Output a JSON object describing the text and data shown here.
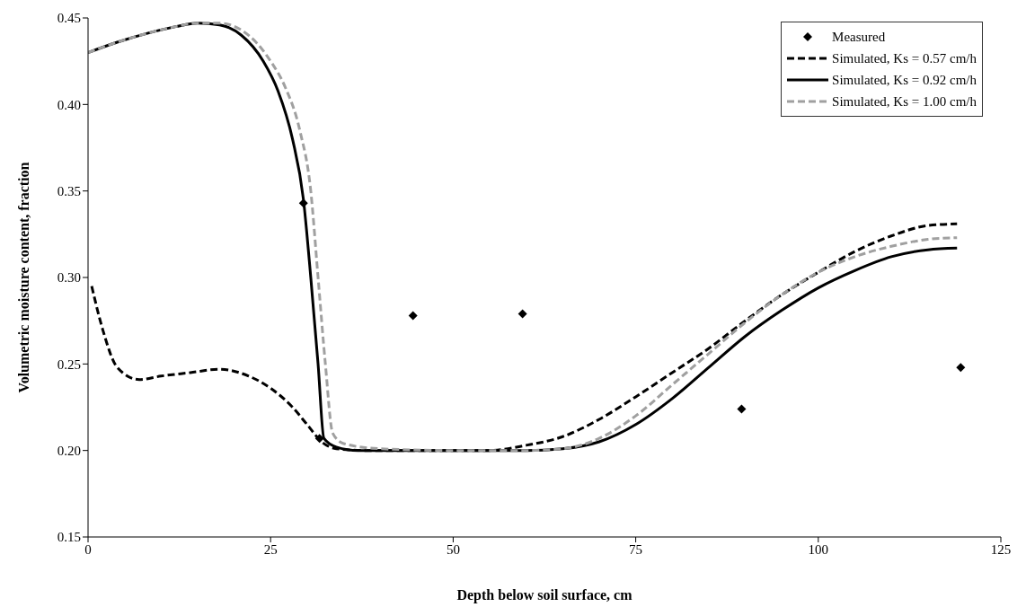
{
  "chart_data": {
    "type": "line",
    "xlabel": "Depth below soil surface, cm",
    "ylabel": "Volumetric moisture content, fraction",
    "xlim": [
      0,
      125
    ],
    "xticks": [
      0,
      25,
      50,
      75,
      100,
      125
    ],
    "ylim": [
      0.15,
      0.45
    ],
    "yticks": [
      {
        "value": 0.15,
        "label": "0.15"
      },
      {
        "value": 0.2,
        "label": "0.20"
      },
      {
        "value": 0.25,
        "label": "0.25"
      },
      {
        "value": 0.3,
        "label": "0.30"
      },
      {
        "value": 0.35,
        "label": "0.35"
      },
      {
        "value": 0.4,
        "label": "0.40"
      },
      {
        "value": 0.45,
        "label": "0.45"
      }
    ],
    "grid": false,
    "legend": "top right",
    "series": [
      {
        "name": "Measured",
        "type": "scatter",
        "marker": "diamond",
        "color": "#000000",
        "x": [
          29.5,
          31.7,
          44.5,
          59.5,
          89.5,
          119.5
        ],
        "values": [
          0.343,
          0.207,
          0.278,
          0.279,
          0.224,
          0.248
        ]
      },
      {
        "name": "Simulated, Ks = 0.57 cm/h",
        "line_style": "dashed",
        "color": "#000000",
        "x": [
          0.5,
          2,
          4,
          7,
          10,
          14,
          18,
          22,
          25,
          28,
          30,
          32,
          34,
          38,
          45,
          50,
          55,
          60,
          65,
          70,
          75,
          80,
          85,
          90,
          95,
          100,
          105,
          110,
          115,
          119
        ],
        "values": [
          0.295,
          0.27,
          0.248,
          0.241,
          0.243,
          0.245,
          0.247,
          0.243,
          0.236,
          0.225,
          0.215,
          0.205,
          0.201,
          0.2,
          0.2,
          0.2,
          0.2,
          0.203,
          0.208,
          0.218,
          0.231,
          0.245,
          0.259,
          0.275,
          0.29,
          0.303,
          0.315,
          0.324,
          0.33,
          0.331
        ]
      },
      {
        "name": "Simulated, Ks = 0.92 cm/h",
        "line_style": "solid",
        "color": "#000000",
        "x": [
          0,
          4,
          8,
          12,
          15,
          18,
          21,
          24,
          26,
          28,
          29.5,
          30.5,
          31.5,
          32.3,
          34,
          37,
          42,
          50,
          60,
          65,
          70,
          75,
          80,
          85,
          90,
          95,
          100,
          105,
          110,
          115,
          119
        ],
        "values": [
          0.43,
          0.436,
          0.441,
          0.445,
          0.447,
          0.446,
          0.44,
          0.425,
          0.408,
          0.38,
          0.345,
          0.3,
          0.25,
          0.207,
          0.202,
          0.2,
          0.2,
          0.2,
          0.2,
          0.201,
          0.205,
          0.215,
          0.23,
          0.248,
          0.266,
          0.281,
          0.294,
          0.304,
          0.312,
          0.316,
          0.317
        ]
      },
      {
        "name": "Simulated, Ks = 1.00 cm/h",
        "line_style": "dashed",
        "color": "#a0a0a0",
        "x": [
          0,
          4,
          8,
          12,
          15,
          18,
          21,
          23,
          25,
          27,
          29,
          30.5,
          31.5,
          32.5,
          33.5,
          35,
          40,
          50,
          60,
          65,
          70,
          75,
          80,
          85,
          90,
          95,
          100,
          105,
          110,
          115,
          119
        ],
        "values": [
          0.43,
          0.436,
          0.441,
          0.445,
          0.447,
          0.447,
          0.443,
          0.436,
          0.425,
          0.41,
          0.385,
          0.35,
          0.3,
          0.25,
          0.21,
          0.204,
          0.201,
          0.2,
          0.2,
          0.201,
          0.207,
          0.22,
          0.238,
          0.256,
          0.274,
          0.29,
          0.303,
          0.312,
          0.318,
          0.322,
          0.323
        ]
      }
    ]
  }
}
